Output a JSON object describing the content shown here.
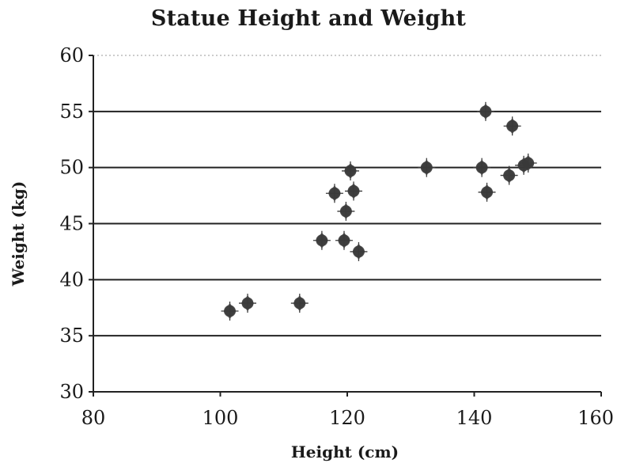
{
  "chart_data": {
    "type": "scatter",
    "title": "Statue Height and Weight",
    "xlabel": "Height (cm)",
    "ylabel": "Weight (kg)",
    "xlim": [
      80,
      160
    ],
    "ylim": [
      30,
      60
    ],
    "xticks": [
      80,
      100,
      120,
      140,
      160
    ],
    "yticks": [
      30,
      35,
      40,
      45,
      50,
      55,
      60
    ],
    "grid": "horizontal",
    "legend": "none",
    "marker_color": "#3a3a3a",
    "series": [
      {
        "x": [
          101.5,
          104.3,
          112.5,
          116.0,
          118.0,
          119.5,
          119.8,
          120.5,
          121.0,
          121.8,
          132.5,
          141.2,
          141.8,
          142.0,
          145.5,
          146.0,
          147.8,
          148.5
        ],
        "y": [
          37.2,
          37.9,
          37.9,
          43.5,
          47.7,
          43.5,
          46.1,
          49.7,
          47.9,
          42.5,
          50.0,
          50.0,
          55.0,
          47.8,
          49.3,
          53.7,
          50.2,
          50.4
        ]
      }
    ]
  }
}
